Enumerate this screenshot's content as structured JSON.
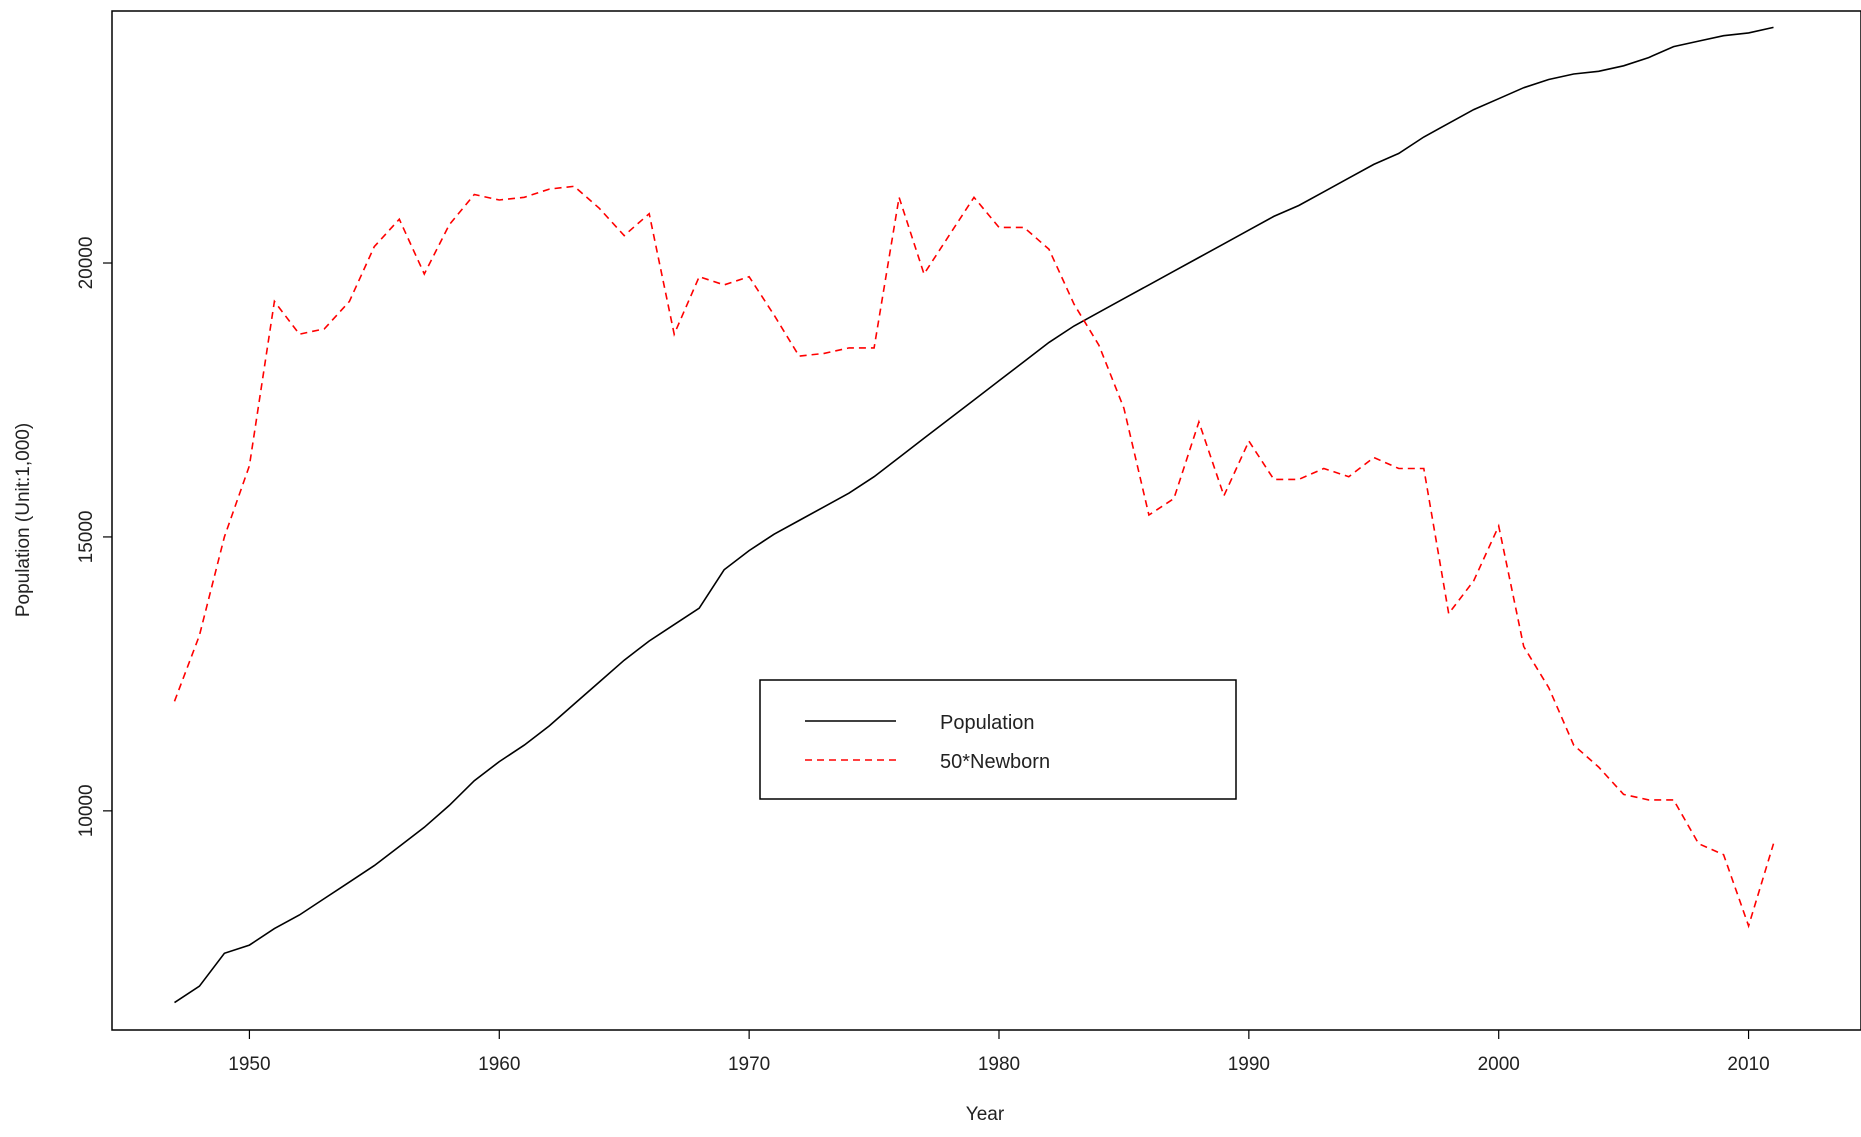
{
  "chart_data": {
    "type": "line",
    "title": "",
    "xlabel": "Year",
    "ylabel": "Population (Unit:1,000)",
    "xlim": [
      1944.5,
      2014.5
    ],
    "ylim": [
      6000,
      24600
    ],
    "x_ticks": [
      1950,
      1960,
      1970,
      1980,
      1990,
      2000,
      2010
    ],
    "y_ticks": [
      10000,
      15000,
      20000
    ],
    "x_tick_labels": [
      "1950",
      "1960",
      "1970",
      "1980",
      "1990",
      "2000",
      "2010"
    ],
    "y_tick_labels": [
      "10000",
      "15000",
      "20000"
    ],
    "legend_position": "center",
    "grid": false,
    "x": [
      1947,
      1948,
      1949,
      1950,
      1951,
      1952,
      1953,
      1954,
      1955,
      1956,
      1957,
      1958,
      1959,
      1960,
      1961,
      1962,
      1963,
      1964,
      1965,
      1966,
      1967,
      1968,
      1969,
      1970,
      1971,
      1972,
      1973,
      1974,
      1975,
      1976,
      1977,
      1978,
      1979,
      1980,
      1981,
      1982,
      1983,
      1984,
      1985,
      1986,
      1987,
      1988,
      1989,
      1990,
      1991,
      1992,
      1993,
      1994,
      1995,
      1996,
      1997,
      1998,
      1999,
      2000,
      2001,
      2002,
      2003,
      2004,
      2005,
      2006,
      2007,
      2008,
      2009,
      2010,
      2011
    ],
    "series": [
      {
        "name": "Population",
        "color": "#000000",
        "dash": "solid",
        "values": [
          6500,
          6800,
          7400,
          7550,
          7850,
          8100,
          8400,
          8700,
          9000,
          9350,
          9700,
          10100,
          10550,
          10900,
          11200,
          11550,
          11950,
          12350,
          12750,
          13100,
          13400,
          13700,
          14400,
          14750,
          15050,
          15300,
          15550,
          15800,
          16100,
          16450,
          16800,
          17150,
          17500,
          17850,
          18200,
          18550,
          18850,
          19100,
          19350,
          19600,
          19850,
          20100,
          20350,
          20600,
          20850,
          21050,
          21300,
          21550,
          21800,
          22000,
          22300,
          22550,
          22800,
          23000,
          23200,
          23350,
          23450,
          23500,
          23600,
          23750,
          23950,
          24050,
          24150,
          24200,
          24300
        ]
      },
      {
        "name": "50*Newborn",
        "color": "#ff0000",
        "dash": "dashed",
        "values": [
          12000,
          13200,
          15000,
          16300,
          19300,
          18700,
          18800,
          19300,
          20300,
          20800,
          19800,
          20700,
          21250,
          21150,
          21200,
          21350,
          21400,
          21000,
          20500,
          20900,
          18700,
          19750,
          19600,
          19750,
          19050,
          18300,
          18350,
          18450,
          18450,
          21200,
          19800,
          20500,
          21200,
          20650,
          20650,
          20250,
          19250,
          18500,
          17350,
          15400,
          15700,
          17100,
          15750,
          16750,
          16050,
          16050,
          16250,
          16100,
          16450,
          16250,
          16250,
          13600,
          14200,
          15200,
          13000,
          12250,
          11200,
          10800,
          10300,
          10200,
          10200,
          9400,
          9200,
          7900,
          9400
        ]
      }
    ]
  }
}
